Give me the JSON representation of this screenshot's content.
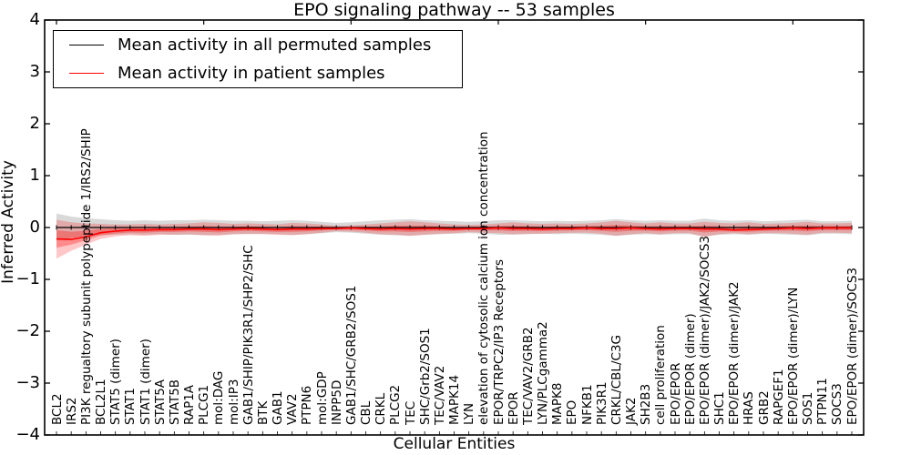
{
  "title": "EPO signaling pathway -- 53 samples",
  "axes": {
    "xlabel": "Cellular Entities",
    "ylabel": "Inferred Activity",
    "yticks": [
      {
        "label": "4",
        "value": 4
      },
      {
        "label": "3",
        "value": 3
      },
      {
        "label": "2",
        "value": 2
      },
      {
        "label": "1",
        "value": 1
      },
      {
        "label": "0",
        "value": 0
      },
      {
        "label": "−1",
        "value": -1
      },
      {
        "label": "−2",
        "value": -2
      },
      {
        "label": "−3",
        "value": -3
      },
      {
        "label": "−4",
        "value": -4
      }
    ]
  },
  "legend": {
    "items": [
      {
        "label": "Mean activity in all permuted samples",
        "color": "#000000"
      },
      {
        "label": "Mean activity in patient samples",
        "color": "#ff0000"
      }
    ]
  },
  "colors": {
    "permuted_line": "#000000",
    "patient_line": "#ff0000",
    "permuted_band": "#aaaaaa",
    "patient_band": "#ff0000",
    "frame": "#000000"
  },
  "chart_data": {
    "type": "line",
    "title": "EPO signaling pathway -- 53 samples",
    "xlabel": "Cellular Entities",
    "ylabel": "Inferred Activity",
    "ylim": [
      -4,
      4
    ],
    "grid": false,
    "legend_position": "upper left",
    "categories": [
      "BCL2",
      "IRS2",
      "PI3K regualtory subunit polypeptide 1/IRS2/SHIP",
      "BCL2L1",
      "STAT5 (dimer)",
      "STAT1",
      "STAT1 (dimer)",
      "STAT5A",
      "STAT5B",
      "RAP1A",
      "PLCG1",
      "mol:DAG",
      "mol:IP3",
      "GAB1/SHIP/PIK3R1/SHP2/SHC",
      "BTK",
      "GAB1",
      "VAV2",
      "PTPN6",
      "mol:GDP",
      "INPP5D",
      "GAB1/SHC/GRB2/SOS1",
      "CBL",
      "CRKL",
      "PLCG2",
      "TEC",
      "SHC/Grb2/SOS1",
      "TEC/VAV2",
      "MAPK14",
      "LYN",
      "elevation of cytosolic calcium ion concentration",
      "EPOR/TRPC2/IP3 Receptors",
      "EPOR",
      "TEC/VAV2/GRB2",
      "LYN/PLCgamma2",
      "MAPK8",
      "EPO",
      "NFKB1",
      "PIK3R1",
      "CRKL/CBL/C3G",
      "JAK2",
      "SH2B3",
      "cell proliferation",
      "EPO/EPOR",
      "EPO/EPOR (dimer)",
      "EPO/EPOR (dimer)/JAK2/SOCS3",
      "SHC1",
      "EPO/EPOR (dimer)/JAK2",
      "HRAS",
      "GRB2",
      "RAPGEF1",
      "EPO/EPOR (dimer)/LYN",
      "SOS1",
      "PTPN11",
      "SOCS3",
      "EPO/EPOR (dimer)/SOCS3"
    ],
    "series": [
      {
        "name": "Mean activity in all permuted samples",
        "color": "#000000",
        "values": [
          0,
          0,
          0,
          0,
          0,
          0,
          0,
          0,
          0,
          0,
          0,
          0,
          0,
          0,
          0,
          0,
          0,
          0,
          0,
          0,
          0,
          0,
          0,
          0,
          0,
          0,
          0,
          0,
          0,
          0,
          0,
          0,
          0,
          0,
          0,
          0,
          0,
          0,
          0,
          0,
          0,
          0,
          0,
          0,
          0,
          0,
          0,
          0,
          0,
          0,
          0,
          0,
          0,
          0,
          0
        ],
        "band_upper": [
          0.27,
          0.21,
          0.18,
          0.16,
          0.14,
          0.13,
          0.14,
          0.13,
          0.14,
          0.14,
          0.15,
          0.14,
          0.13,
          0.13,
          0.12,
          0.13,
          0.14,
          0.13,
          0.11,
          0.09,
          0.1,
          0.12,
          0.14,
          0.15,
          0.16,
          0.14,
          0.13,
          0.12,
          0.11,
          0.12,
          0.14,
          0.14,
          0.13,
          0.12,
          0.13,
          0.12,
          0.13,
          0.14,
          0.16,
          0.14,
          0.13,
          0.14,
          0.13,
          0.13,
          0.17,
          0.14,
          0.13,
          0.14,
          0.12,
          0.13,
          0.14,
          0.15,
          0.12,
          0.12,
          0.13
        ],
        "band_lower": [
          -0.25,
          -0.2,
          -0.17,
          -0.15,
          -0.14,
          -0.13,
          -0.14,
          -0.13,
          -0.14,
          -0.14,
          -0.15,
          -0.14,
          -0.13,
          -0.13,
          -0.12,
          -0.13,
          -0.14,
          -0.13,
          -0.11,
          -0.09,
          -0.1,
          -0.12,
          -0.14,
          -0.15,
          -0.16,
          -0.14,
          -0.13,
          -0.12,
          -0.11,
          -0.12,
          -0.14,
          -0.14,
          -0.13,
          -0.12,
          -0.13,
          -0.12,
          -0.13,
          -0.14,
          -0.16,
          -0.14,
          -0.13,
          -0.14,
          -0.13,
          -0.13,
          -0.17,
          -0.14,
          -0.13,
          -0.14,
          -0.12,
          -0.13,
          -0.14,
          -0.15,
          -0.12,
          -0.12,
          -0.13
        ]
      },
      {
        "name": "Mean activity in patient samples",
        "color": "#ff0000",
        "values": [
          -0.22,
          -0.23,
          -0.18,
          -0.1,
          -0.07,
          -0.05,
          -0.05,
          -0.04,
          -0.04,
          -0.03,
          -0.03,
          -0.04,
          -0.03,
          -0.02,
          -0.03,
          -0.04,
          -0.03,
          -0.03,
          -0.02,
          -0.02,
          -0.01,
          -0.02,
          -0.03,
          -0.02,
          -0.03,
          -0.02,
          -0.02,
          -0.03,
          -0.02,
          -0.02,
          -0.01,
          -0.02,
          -0.02,
          -0.03,
          -0.02,
          -0.02,
          -0.01,
          -0.02,
          -0.02,
          -0.01,
          -0.02,
          -0.03,
          -0.02,
          -0.02,
          -0.03,
          -0.03,
          -0.05,
          -0.04,
          -0.03,
          -0.02,
          -0.01,
          -0.02,
          -0.01,
          -0.01,
          -0.01
        ],
        "band_upper": [
          0.15,
          0.1,
          0.08,
          0.07,
          0.06,
          0.06,
          0.07,
          0.06,
          0.07,
          0.08,
          0.1,
          0.09,
          0.07,
          0.08,
          0.07,
          0.06,
          0.09,
          0.08,
          0.06,
          0.03,
          0.04,
          0.06,
          0.08,
          0.1,
          0.12,
          0.1,
          0.08,
          0.06,
          0.05,
          0.06,
          0.08,
          0.1,
          0.08,
          0.07,
          0.08,
          0.07,
          0.08,
          0.1,
          0.13,
          0.1,
          0.08,
          0.1,
          0.08,
          0.08,
          0.11,
          0.09,
          0.08,
          0.1,
          0.07,
          0.08,
          0.09,
          0.11,
          0.08,
          0.08,
          0.09
        ],
        "band_lower": [
          -0.6,
          -0.45,
          -0.33,
          -0.22,
          -0.17,
          -0.15,
          -0.16,
          -0.14,
          -0.14,
          -0.13,
          -0.15,
          -0.16,
          -0.13,
          -0.12,
          -0.13,
          -0.14,
          -0.15,
          -0.13,
          -0.1,
          -0.07,
          -0.08,
          -0.1,
          -0.13,
          -0.14,
          -0.16,
          -0.14,
          -0.12,
          -0.11,
          -0.09,
          -0.1,
          -0.11,
          -0.13,
          -0.12,
          -0.12,
          -0.11,
          -0.1,
          -0.1,
          -0.12,
          -0.16,
          -0.13,
          -0.11,
          -0.13,
          -0.11,
          -0.11,
          -0.18,
          -0.13,
          -0.11,
          -0.13,
          -0.11,
          -0.11,
          -0.12,
          -0.14,
          -0.1,
          -0.1,
          -0.11
        ]
      }
    ]
  }
}
